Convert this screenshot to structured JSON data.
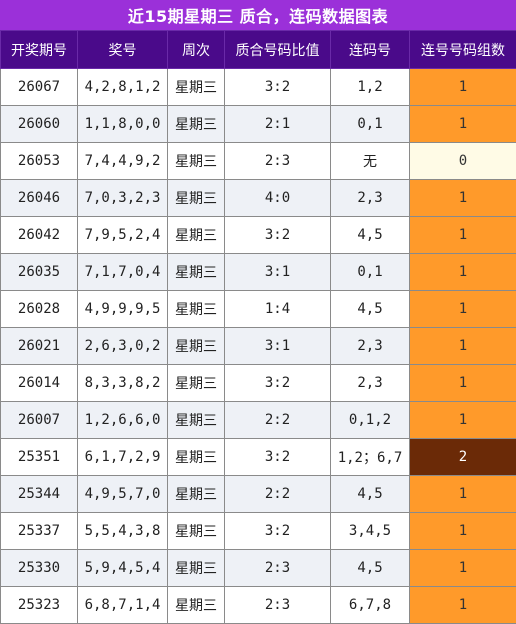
{
  "title": "近15期星期三 质合，连码数据图表",
  "headers": [
    "开奖期号",
    "奖号",
    "周次",
    "质合号码比值",
    "连码号",
    "连号号码组数"
  ],
  "rows": [
    {
      "issue": "26067",
      "numbers": "4,2,8,1,2",
      "weekday": "星期三",
      "ratio": "3:2",
      "consec": "1,2",
      "count": "1",
      "level": "c1"
    },
    {
      "issue": "26060",
      "numbers": "1,1,8,0,0",
      "weekday": "星期三",
      "ratio": "2:1",
      "consec": "0,1",
      "count": "1",
      "level": "c1"
    },
    {
      "issue": "26053",
      "numbers": "7,4,4,9,2",
      "weekday": "星期三",
      "ratio": "2:3",
      "consec": "无",
      "count": "0",
      "level": "c0"
    },
    {
      "issue": "26046",
      "numbers": "7,0,3,2,3",
      "weekday": "星期三",
      "ratio": "4:0",
      "consec": "2,3",
      "count": "1",
      "level": "c1"
    },
    {
      "issue": "26042",
      "numbers": "7,9,5,2,4",
      "weekday": "星期三",
      "ratio": "3:2",
      "consec": "4,5",
      "count": "1",
      "level": "c1"
    },
    {
      "issue": "26035",
      "numbers": "7,1,7,0,4",
      "weekday": "星期三",
      "ratio": "3:1",
      "consec": "0,1",
      "count": "1",
      "level": "c1"
    },
    {
      "issue": "26028",
      "numbers": "4,9,9,9,5",
      "weekday": "星期三",
      "ratio": "1:4",
      "consec": "4,5",
      "count": "1",
      "level": "c1"
    },
    {
      "issue": "26021",
      "numbers": "2,6,3,0,2",
      "weekday": "星期三",
      "ratio": "3:1",
      "consec": "2,3",
      "count": "1",
      "level": "c1"
    },
    {
      "issue": "26014",
      "numbers": "8,3,3,8,2",
      "weekday": "星期三",
      "ratio": "3:2",
      "consec": "2,3",
      "count": "1",
      "level": "c1"
    },
    {
      "issue": "26007",
      "numbers": "1,2,6,6,0",
      "weekday": "星期三",
      "ratio": "2:2",
      "consec": "0,1,2",
      "count": "1",
      "level": "c1"
    },
    {
      "issue": "25351",
      "numbers": "6,1,7,2,9",
      "weekday": "星期三",
      "ratio": "3:2",
      "consec": "1,2；6,7",
      "count": "2",
      "level": "c2"
    },
    {
      "issue": "25344",
      "numbers": "4,9,5,7,0",
      "weekday": "星期三",
      "ratio": "2:2",
      "consec": "4,5",
      "count": "1",
      "level": "c1"
    },
    {
      "issue": "25337",
      "numbers": "5,5,4,3,8",
      "weekday": "星期三",
      "ratio": "3:2",
      "consec": "3,4,5",
      "count": "1",
      "level": "c1"
    },
    {
      "issue": "25330",
      "numbers": "5,9,4,5,4",
      "weekday": "星期三",
      "ratio": "2:3",
      "consec": "4,5",
      "count": "1",
      "level": "c1"
    },
    {
      "issue": "25323",
      "numbers": "6,8,7,1,4",
      "weekday": "星期三",
      "ratio": "2:3",
      "consec": "6,7,8",
      "count": "1",
      "level": "c1"
    }
  ],
  "colors": {
    "title_bg": "#9b30d9",
    "header_bg": "#4a0a8a",
    "count_1": "#ff9a2a",
    "count_0": "#fffbe6",
    "count_2": "#6b2a07"
  }
}
